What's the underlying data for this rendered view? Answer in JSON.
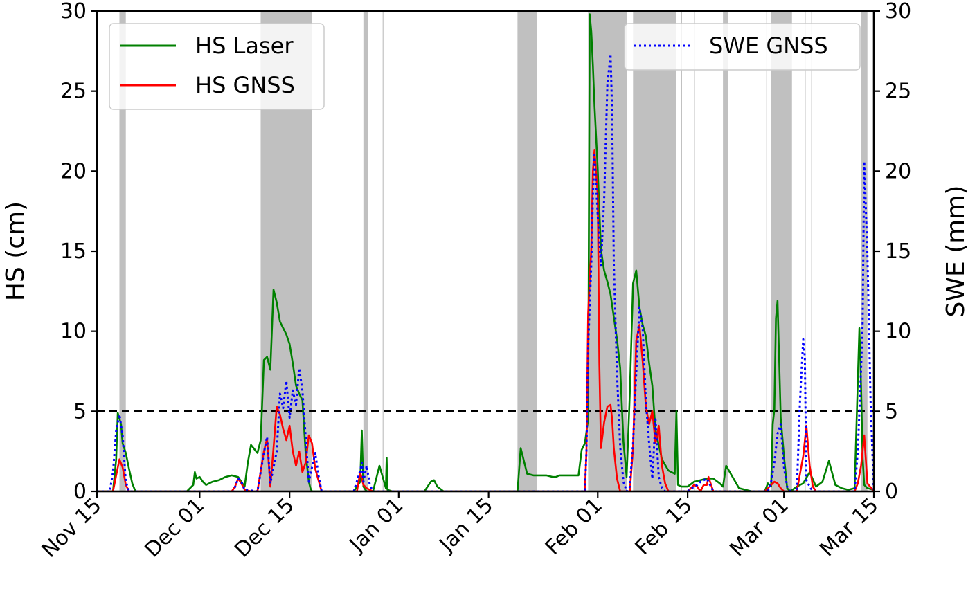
{
  "chart_data": {
    "type": "line",
    "title": "",
    "xlabel": "",
    "ylabel": "HS (cm)",
    "y2label": "SWE (mm)",
    "xlim": [
      "2019-11-15",
      "2020-03-15"
    ],
    "ylim": [
      0,
      30
    ],
    "y2lim": [
      0,
      30
    ],
    "x_ticks": [
      {
        "date": "2019-11-15",
        "label": "Nov 15"
      },
      {
        "date": "2019-12-01",
        "label": "Dec 01"
      },
      {
        "date": "2019-12-15",
        "label": "Dec 15"
      },
      {
        "date": "2020-01-01",
        "label": "Jan 01"
      },
      {
        "date": "2020-01-15",
        "label": "Jan 15"
      },
      {
        "date": "2020-02-01",
        "label": "Feb 01"
      },
      {
        "date": "2020-02-15",
        "label": "Feb 15"
      },
      {
        "date": "2020-03-01",
        "label": "Mar 01"
      },
      {
        "date": "2020-03-15",
        "label": "Mar 15"
      }
    ],
    "y_ticks": [
      "0",
      "5",
      "10",
      "15",
      "20",
      "25",
      "30"
    ],
    "y2_ticks": [
      "0",
      "5",
      "10",
      "15",
      "20",
      "25",
      "30"
    ],
    "threshold_line": {
      "value": 5,
      "style": "dashed",
      "color": "#000000"
    },
    "shaded_periods": [
      [
        "2019-11-18 12:00",
        "2019-11-19 12:00"
      ],
      [
        "2019-12-10 12:00",
        "2019-12-18 12:00"
      ],
      [
        "2019-12-26 12:00",
        "2019-12-27 06:00"
      ],
      [
        "2019-12-29 12:00",
        "2019-12-29 15:00"
      ],
      [
        "2020-01-19 12:00",
        "2020-01-22 12:00"
      ],
      [
        "2020-01-30 12:00",
        "2020-02-05 12:00"
      ],
      [
        "2020-02-06 12:00",
        "2020-02-13 06:00"
      ],
      [
        "2020-02-14 00:00",
        "2020-02-14 03:00"
      ],
      [
        "2020-02-16 00:00",
        "2020-02-16 03:00"
      ],
      [
        "2020-02-20 12:00",
        "2020-02-21 06:00"
      ],
      [
        "2020-02-27 06:00",
        "2020-02-27 09:00"
      ],
      [
        "2020-02-28 00:00",
        "2020-03-02 06:00"
      ],
      [
        "2020-03-04 06:00",
        "2020-03-04 09:00"
      ],
      [
        "2020-03-05 06:00",
        "2020-03-05 09:00"
      ],
      [
        "2020-03-13 00:00",
        "2020-03-14 00:00"
      ]
    ],
    "series": [
      {
        "name": "HS Laser",
        "axis": "left",
        "color": "#008000",
        "style": "solid",
        "x": [
          "2019-11-15",
          "2019-11-17 12:00",
          "2019-11-18",
          "2019-11-18 06:00",
          "2019-11-18 18:00",
          "2019-11-19",
          "2019-11-19 12:00",
          "2019-11-20",
          "2019-11-20 12:00",
          "2019-11-21",
          "2019-11-21 12:00",
          "2019-11-22",
          "2019-11-22 06:00",
          "2019-11-22 12:00",
          "2019-11-25",
          "2019-11-28",
          "2019-11-29",
          "2019-11-30",
          "2019-11-30 06:00",
          "2019-11-30 12:00",
          "2019-12-01",
          "2019-12-01 12:00",
          "2019-12-02",
          "2019-12-03",
          "2019-12-04",
          "2019-12-05",
          "2019-12-06",
          "2019-12-07",
          "2019-12-07 12:00",
          "2019-12-08",
          "2019-12-08 12:00",
          "2019-12-09",
          "2019-12-10",
          "2019-12-10 12:00",
          "2019-12-11",
          "2019-12-11 12:00",
          "2019-12-12",
          "2019-12-12 12:00",
          "2019-12-13",
          "2019-12-13 12:00",
          "2019-12-14",
          "2019-12-14 12:00",
          "2019-12-15",
          "2019-12-15 12:00",
          "2019-12-16",
          "2019-12-16 12:00",
          "2019-12-17",
          "2019-12-17 12:00",
          "2019-12-18",
          "2019-12-18 06:00",
          "2019-12-18 12:00",
          "2019-12-19",
          "2019-12-20",
          "2019-12-22",
          "2019-12-25",
          "2019-12-26",
          "2019-12-26 06:00",
          "2019-12-26 12:00",
          "2019-12-27",
          "2019-12-28",
          "2019-12-29",
          "2019-12-30",
          "2019-12-30 03:00",
          "2019-12-30 06:00",
          "2019-12-31",
          "2020-01-03",
          "2020-01-05",
          "2020-01-06",
          "2020-01-06 12:00",
          "2020-01-07",
          "2020-01-08",
          "2020-01-12",
          "2020-01-15",
          "2020-01-18",
          "2020-01-19",
          "2020-01-19 12:00",
          "2020-01-20",
          "2020-01-21",
          "2020-01-22",
          "2020-01-24",
          "2020-01-25",
          "2020-01-25 12:00",
          "2020-01-26",
          "2020-01-27",
          "2020-01-29",
          "2020-01-29 12:00",
          "2020-01-30",
          "2020-01-30 12:00",
          "2020-01-30 18:00",
          "2020-01-31",
          "2020-01-31 06:00",
          "2020-01-31 12:00",
          "2020-02-01",
          "2020-02-01 12:00",
          "2020-02-02",
          "2020-02-02 12:00",
          "2020-02-03",
          "2020-02-04",
          "2020-02-04 12:00",
          "2020-02-05",
          "2020-02-05 12:00",
          "2020-02-06",
          "2020-02-06 12:00",
          "2020-02-07",
          "2020-02-07 12:00",
          "2020-02-08",
          "2020-02-08 12:00",
          "2020-02-09",
          "2020-02-09 12:00",
          "2020-02-10",
          "2020-02-11",
          "2020-02-12",
          "2020-02-13",
          "2020-02-13 06:00",
          "2020-02-13 12:00",
          "2020-02-14",
          "2020-02-15",
          "2020-02-16",
          "2020-02-18",
          "2020-02-19",
          "2020-02-20",
          "2020-02-20 12:00",
          "2020-02-21",
          "2020-02-23",
          "2020-02-25",
          "2020-02-27",
          "2020-02-27 12:00",
          "2020-02-28",
          "2020-02-28 06:00",
          "2020-02-28 12:00",
          "2020-02-28 18:00",
          "2020-02-29",
          "2020-02-29 06:00",
          "2020-02-29 12:00",
          "2020-03-01",
          "2020-03-01 12:00",
          "2020-03-02",
          "2020-03-03",
          "2020-03-04",
          "2020-03-05",
          "2020-03-06",
          "2020-03-07",
          "2020-03-08",
          "2020-03-09",
          "2020-03-10",
          "2020-03-11",
          "2020-03-12",
          "2020-03-12 18:00",
          "2020-03-13",
          "2020-03-13 06:00",
          "2020-03-13 12:00",
          "2020-03-14",
          "2020-03-15"
        ],
        "values": [
          0,
          0,
          2,
          4.9,
          4.2,
          3,
          2.4,
          1.4,
          0.5,
          0,
          0,
          0,
          0,
          0,
          0,
          0,
          0,
          0.4,
          1.2,
          0.8,
          0.9,
          0.6,
          0.4,
          0.6,
          0.7,
          0.9,
          1,
          0.9,
          0.6,
          0.3,
          1.8,
          2.9,
          2.4,
          3.2,
          8.2,
          8.4,
          7.6,
          12.6,
          11.8,
          10.6,
          10.2,
          9.8,
          9.2,
          8,
          6.6,
          6.1,
          5.7,
          2.4,
          0.6,
          0.2,
          0,
          0,
          0,
          0,
          0,
          0.6,
          3.8,
          0.3,
          0,
          0,
          1.6,
          0.2,
          2.1,
          0.1,
          0,
          0,
          0,
          0.6,
          0.7,
          0.3,
          0,
          0,
          0,
          0,
          0,
          0,
          2.7,
          1.1,
          1,
          1,
          0.9,
          0.9,
          1,
          1,
          1,
          2.6,
          3,
          4.5,
          29.8,
          28.7,
          26.6,
          24.1,
          20.1,
          15.1,
          13.8,
          13.1,
          12.3,
          9.5,
          7.7,
          3.1,
          0.9,
          6.1,
          13,
          13.8,
          11.5,
          10.4,
          9.7,
          8,
          6.6,
          3.8,
          2,
          1.3,
          1.1,
          5,
          0.4,
          0.3,
          0.3,
          0.6,
          0.8,
          0.8,
          0.5,
          0.3,
          1.6,
          0.2,
          0,
          0,
          0.5,
          0.3,
          4.2,
          5.1,
          10.8,
          11.9,
          8.3,
          4.6,
          2.2,
          0.2,
          0,
          0.3,
          0.5,
          1.2,
          0.3,
          0.6,
          1.9,
          0.4,
          0.2,
          0.1,
          0.2,
          10.2,
          6.6,
          2.1,
          0.4,
          0.2,
          0.1
        ]
      },
      {
        "name": "HS GNSS",
        "axis": "left",
        "color": "#ff0000",
        "style": "solid",
        "x": [
          "2019-11-15",
          "2019-11-17 12:00",
          "2019-11-18",
          "2019-11-18 12:00",
          "2019-11-19",
          "2019-11-19 12:00",
          "2019-11-20",
          "2019-12-06",
          "2019-12-06 12:00",
          "2019-12-07",
          "2019-12-07 12:00",
          "2019-12-08",
          "2019-12-09",
          "2019-12-09 12:00",
          "2019-12-10",
          "2019-12-11",
          "2019-12-11 12:00",
          "2019-12-12",
          "2019-12-12 12:00",
          "2019-12-13",
          "2019-12-13 12:00",
          "2019-12-14",
          "2019-12-14 12:00",
          "2019-12-15",
          "2019-12-15 12:00",
          "2019-12-16",
          "2019-12-16 12:00",
          "2019-12-17",
          "2019-12-17 12:00",
          "2019-12-18",
          "2019-12-18 12:00",
          "2019-12-19",
          "2019-12-20",
          "2019-12-24",
          "2019-12-25 12:00",
          "2019-12-26",
          "2019-12-26 12:00",
          "2019-12-27",
          "2019-12-28",
          "2020-01-29",
          "2020-01-30",
          "2020-01-30 06:00",
          "2020-01-30 12:00",
          "2020-01-31",
          "2020-01-31 06:00",
          "2020-01-31 12:00",
          "2020-02-01",
          "2020-02-01 06:00",
          "2020-02-01 12:00",
          "2020-02-02",
          "2020-02-02 12:00",
          "2020-02-03",
          "2020-02-03 06:00",
          "2020-02-03 12:00",
          "2020-02-04",
          "2020-02-04 12:00",
          "2020-02-05",
          "2020-02-06",
          "2020-02-06 12:00",
          "2020-02-07",
          "2020-02-07 12:00",
          "2020-02-08",
          "2020-02-08 12:00",
          "2020-02-09",
          "2020-02-09 12:00",
          "2020-02-10",
          "2020-02-10 12:00",
          "2020-02-11",
          "2020-02-11 12:00",
          "2020-02-12",
          "2020-02-13",
          "2020-02-15",
          "2020-02-16",
          "2020-02-16 12:00",
          "2020-02-17",
          "2020-02-17 12:00",
          "2020-02-18",
          "2020-02-18 06:00",
          "2020-02-18 12:00",
          "2020-02-19",
          "2020-02-27",
          "2020-02-28",
          "2020-02-28 12:00",
          "2020-02-29",
          "2020-02-29 12:00",
          "2020-03-01",
          "2020-03-02",
          "2020-03-03",
          "2020-03-04",
          "2020-03-04 12:00",
          "2020-03-05",
          "2020-03-05 12:00",
          "2020-03-06",
          "2020-03-12",
          "2020-03-12 12:00",
          "2020-03-13",
          "2020-03-13 12:00",
          "2020-03-14",
          "2020-03-15"
        ],
        "values": [
          0,
          0,
          1,
          2,
          1.5,
          0.4,
          0,
          0,
          0.3,
          0.8,
          0.5,
          0.1,
          0,
          0,
          0,
          2.5,
          3.3,
          0.3,
          2.7,
          5.3,
          4.8,
          3.9,
          3.2,
          4.1,
          2.5,
          1.6,
          2.5,
          1.2,
          1.8,
          3.5,
          3,
          1.4,
          0,
          0,
          0,
          1.2,
          0.4,
          0.2,
          0,
          0,
          0,
          2.5,
          11.1,
          15.2,
          20,
          21.3,
          18.5,
          8,
          2.7,
          4.3,
          5.3,
          5.4,
          4.5,
          2.7,
          0.8,
          0,
          0,
          0,
          2.7,
          9.4,
          10.4,
          8.1,
          5.3,
          4.2,
          5,
          3,
          4.1,
          1.6,
          0.5,
          0,
          0,
          0,
          0.4,
          0.3,
          0,
          0.4,
          0.4,
          0.9,
          0.6,
          0,
          0,
          0.4,
          0.6,
          0.5,
          0.2,
          0,
          0,
          0,
          2.2,
          4.1,
          1.6,
          0.3,
          0,
          0,
          0.5,
          1.6,
          3.5,
          0.5,
          0
        ]
      },
      {
        "name": "SWE GNSS",
        "axis": "right",
        "color": "#0000ff",
        "style": "dotted",
        "x": [
          "2019-11-15",
          "2019-11-17",
          "2019-11-17 12:00",
          "2019-11-18",
          "2019-11-18 12:00",
          "2019-11-19",
          "2019-11-19 12:00",
          "2019-11-20",
          "2019-12-06 06:00",
          "2019-12-07",
          "2019-12-07 12:00",
          "2019-12-08",
          "2019-12-10",
          "2019-12-11",
          "2019-12-11 12:00",
          "2019-12-12",
          "2019-12-13",
          "2019-12-13 12:00",
          "2019-12-14",
          "2019-12-14 12:00",
          "2019-12-15",
          "2019-12-15 12:00",
          "2019-12-16",
          "2019-12-16 12:00",
          "2019-12-17",
          "2019-12-17 12:00",
          "2019-12-18",
          "2019-12-18 12:00",
          "2019-12-19",
          "2019-12-19 12:00",
          "2019-12-20",
          "2019-12-25",
          "2019-12-26",
          "2019-12-26 06:00",
          "2019-12-26 12:00",
          "2019-12-27",
          "2019-12-27 12:00",
          "2019-12-28",
          "2020-01-29",
          "2020-01-30",
          "2020-01-30 06:00",
          "2020-01-30 12:00",
          "2020-01-31",
          "2020-01-31 06:00",
          "2020-01-31 12:00",
          "2020-02-01",
          "2020-02-01 12:00",
          "2020-02-02",
          "2020-02-02 12:00",
          "2020-02-03",
          "2020-02-03 06:00",
          "2020-02-03 12:00",
          "2020-02-04",
          "2020-02-04 12:00",
          "2020-02-05",
          "2020-02-05 12:00",
          "2020-02-06",
          "2020-02-06 12:00",
          "2020-02-07",
          "2020-02-07 12:00",
          "2020-02-08",
          "2020-02-08 12:00",
          "2020-02-09",
          "2020-02-09 12:00",
          "2020-02-10",
          "2020-02-10 12:00",
          "2020-02-11",
          "2020-02-11 12:00",
          "2020-02-12",
          "2020-02-15",
          "2020-02-16",
          "2020-02-16 12:00",
          "2020-02-17",
          "2020-02-17 12:00",
          "2020-02-18",
          "2020-02-18 12:00",
          "2020-02-19",
          "2020-02-27 12:00",
          "2020-02-28",
          "2020-02-28 12:00",
          "2020-02-29",
          "2020-02-29 12:00",
          "2020-03-01",
          "2020-03-01 12:00",
          "2020-03-02",
          "2020-03-03",
          "2020-03-03 12:00",
          "2020-03-04",
          "2020-03-04 06:00",
          "2020-03-04 12:00",
          "2020-03-05",
          "2020-03-05 12:00",
          "2020-03-06",
          "2020-03-12",
          "2020-03-12 12:00",
          "2020-03-13",
          "2020-03-13 06:00",
          "2020-03-13 12:00",
          "2020-03-14",
          "2020-03-14 12:00",
          "2020-03-15"
        ],
        "values": [
          0,
          0,
          1.2,
          3.8,
          4.8,
          3.5,
          0.6,
          0,
          0,
          0.8,
          0.6,
          0.1,
          0,
          2.4,
          3.4,
          0.5,
          2.5,
          6.1,
          5.2,
          6.9,
          4.6,
          6.3,
          5.4,
          7.7,
          6.3,
          3.4,
          0.6,
          1.5,
          2.4,
          1,
          0,
          0,
          1.3,
          1.8,
          0.6,
          1.6,
          0.4,
          0,
          0,
          0,
          2.5,
          9,
          14.2,
          18.5,
          21,
          17.2,
          14.1,
          18.2,
          25.4,
          27.3,
          23.6,
          14.2,
          7.3,
          2.8,
          0.6,
          0,
          0.3,
          3,
          7.4,
          11.5,
          10.2,
          5.6,
          3,
          0.8,
          4.5,
          0.9,
          0.2,
          0,
          0,
          0,
          0.3,
          0.4,
          0.6,
          0.7,
          0.8,
          0.4,
          0,
          0,
          0.6,
          1.8,
          3.6,
          4.2,
          1.5,
          0.3,
          0,
          0,
          5.7,
          9.5,
          8.4,
          0.7,
          0.3,
          0,
          0,
          0,
          2.5,
          7.6,
          10.5,
          20.6,
          14.8,
          5.4,
          0
        ]
      }
    ],
    "legends": [
      {
        "position": "upper-left",
        "entries": [
          "HS Laser",
          "HS GNSS"
        ]
      },
      {
        "position": "upper-right",
        "entries": [
          "SWE GNSS"
        ]
      }
    ],
    "grid": false
  }
}
